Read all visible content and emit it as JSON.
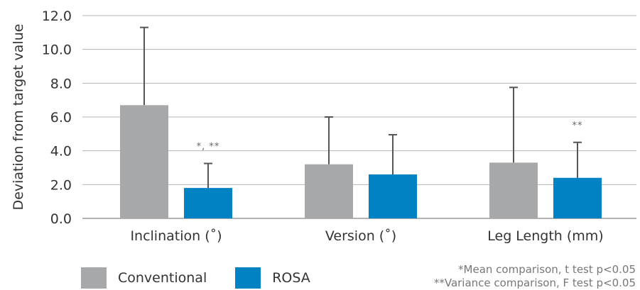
{
  "chart_data": {
    "type": "bar",
    "categories": [
      "Inclination (˚)",
      "Version (˚)",
      "Leg Length (mm)"
    ],
    "series": [
      {
        "name": "Conventional",
        "color": "#a7a8aa",
        "values": [
          6.7,
          3.2,
          3.3
        ],
        "errors": [
          4.6,
          2.8,
          4.45
        ],
        "significance": [
          "",
          "",
          ""
        ]
      },
      {
        "name": "ROSA",
        "color": "#0082c3",
        "values": [
          1.8,
          2.6,
          2.4
        ],
        "errors": [
          1.45,
          2.35,
          2.1
        ],
        "significance": [
          "*, **",
          "",
          "**"
        ]
      }
    ],
    "ylabel": "Deviation from target value",
    "ylim": [
      0,
      12
    ],
    "yticks": [
      "0.0",
      "2.0",
      "4.0",
      "6.0",
      "8.0",
      "10.0",
      "12.0"
    ],
    "grid": true,
    "legend_position": "bottom-left"
  },
  "footnotes": {
    "line1": "*Mean comparison, t test p<0.05",
    "line2": "**Variance comparison, F test p<0.05"
  }
}
